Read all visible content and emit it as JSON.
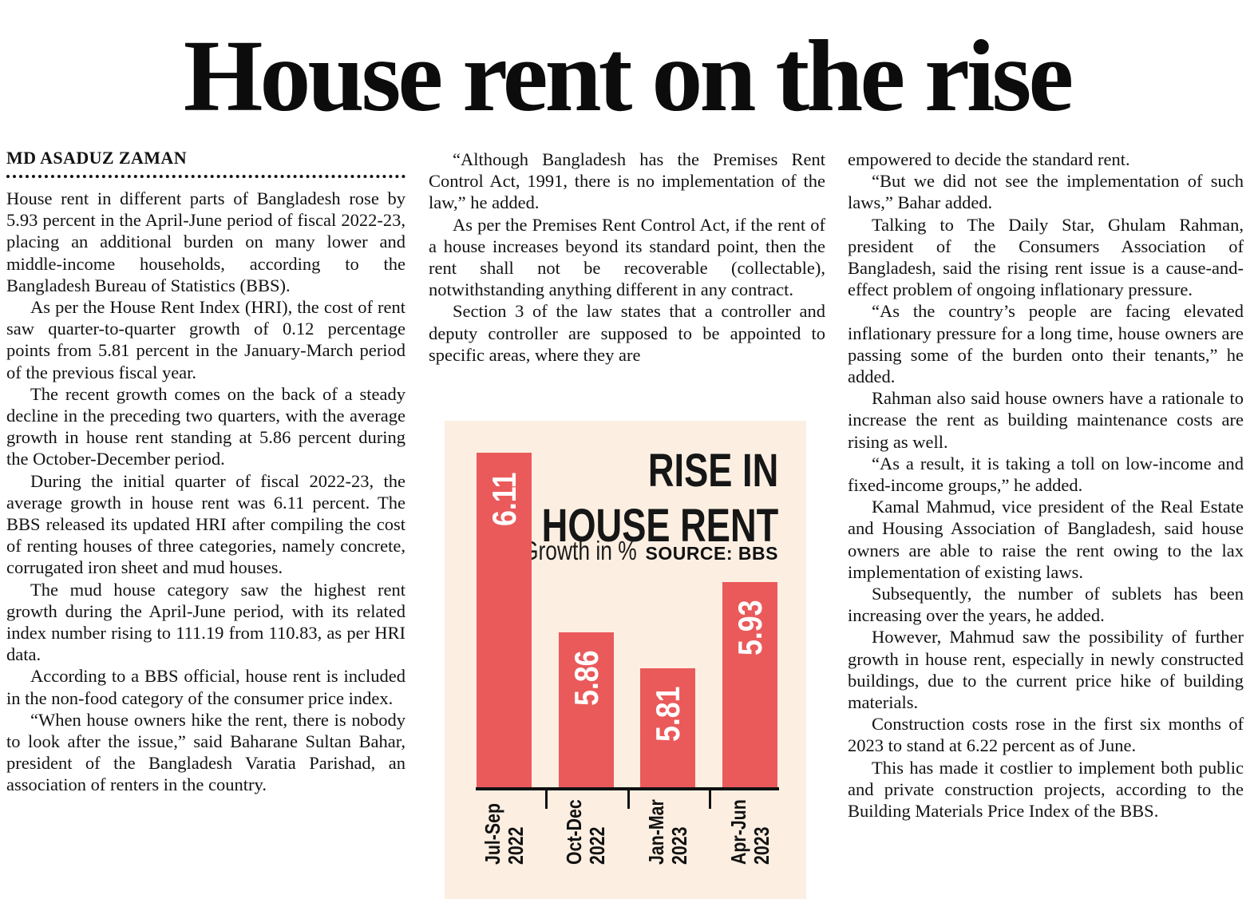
{
  "headline": "House rent on the rise",
  "byline": "MD ASADUZ ZAMAN",
  "columns": {
    "col1": {
      "paragraphs": [
        {
          "indent": false,
          "text": "House rent in different parts of Bangladesh rose by 5.93 percent in the April-June period of fiscal 2022-23, placing an additional burden on many lower and middle-income households, according to the Bangladesh Bureau of Statistics (BBS)."
        },
        {
          "indent": true,
          "text": "As per the House Rent Index (HRI), the cost of rent saw quarter-to-quarter growth of 0.12 percentage points from 5.81 percent in the January-March period of the previous fiscal year."
        },
        {
          "indent": true,
          "text": "The recent growth comes on the back of a steady decline in the preceding two quarters, with the average growth in house rent standing at 5.86 percent during the October-December period."
        },
        {
          "indent": true,
          "text": "During the initial quarter of fiscal 2022-23, the average growth in house rent was 6.11 percent. The BBS released its updated HRI after compiling the cost of renting houses of three categories, namely concrete, corrugated iron sheet and mud houses."
        },
        {
          "indent": true,
          "text": "The mud house category saw the highest rent growth during the April-June period, with its related index number rising to 111.19 from 110.83, as per HRI data."
        },
        {
          "indent": true,
          "text": "According to a BBS official, house rent is included in the non-food category of the consumer price index."
        },
        {
          "indent": true,
          "text": "“When house owners hike the rent, there is nobody to look after the issue,” said Baharane Sultan Bahar, president of the Bangladesh Varatia Parishad, an association of renters in the country."
        }
      ]
    },
    "col2": {
      "paragraphs": [
        {
          "indent": true,
          "text": "“Although Bangladesh has the Premises Rent Control Act, 1991, there is no implementation of the law,” he added."
        },
        {
          "indent": true,
          "text": "As per the Premises Rent Control Act, if the rent of a house increases beyond its standard point, then the rent shall not be recoverable (collectable), notwithstanding anything different in any contract."
        },
        {
          "indent": true,
          "text": "Section 3 of the law states that a controller and deputy controller are supposed to be appointed to specific areas, where they are"
        }
      ]
    },
    "col3": {
      "paragraphs": [
        {
          "indent": false,
          "text": "empowered to decide the standard rent."
        },
        {
          "indent": true,
          "text": "“But we did not see the implementation of such laws,” Bahar added."
        },
        {
          "indent": true,
          "text": "Talking to The Daily Star, Ghulam Rahman, president of the Consumers Association of Bangladesh, said the rising rent issue is a cause-and-effect problem of ongoing inflationary pressure."
        },
        {
          "indent": true,
          "text": "“As the country’s people are facing elevated inflationary pressure for a long time, house owners are passing some of the burden onto their tenants,” he added."
        },
        {
          "indent": true,
          "text": "Rahman also said house owners have a rationale to increase the rent as building maintenance costs are rising as well."
        },
        {
          "indent": true,
          "text": "“As a result, it is taking a toll on low-income and fixed-income groups,” he added."
        },
        {
          "indent": true,
          "text": "Kamal Mahmud, vice president of the Real Estate and Housing Association of Bangladesh, said house owners are able to raise the rent owing to the lax implementation of existing laws."
        },
        {
          "indent": true,
          "text": "Subsequently, the number of sublets has been increasing over the years, he added."
        },
        {
          "indent": true,
          "text": "However, Mahmud saw the possibility of further growth in house rent, especially in newly constructed buildings, due to the current price hike of building materials."
        },
        {
          "indent": true,
          "text": "Construction costs rose in the first six months of 2023 to stand at 6.22 percent as of June."
        },
        {
          "indent": true,
          "text": "This has made it costlier to implement both public and private construction projects, according to the Building Materials Price Index of the BBS."
        }
      ]
    }
  },
  "chart_data": {
    "type": "bar",
    "title_lines": [
      "RISE IN",
      "HOUSE RENT"
    ],
    "subtitle": "Growth in %",
    "source": "SOURCE: BBS",
    "categories": [
      [
        "Jul-Sep",
        "2022"
      ],
      [
        "Oct-Dec",
        "2022"
      ],
      [
        "Jan-Mar",
        "2023"
      ],
      [
        "Apr-Jun",
        "2023"
      ]
    ],
    "values": [
      6.11,
      5.86,
      5.81,
      5.93
    ],
    "value_labels": [
      "6.11",
      "5.86",
      "5.81",
      "5.93"
    ],
    "unit": "%",
    "bar_color": "#ea5a5b",
    "background_color": "#fcefe2",
    "axis_color": "#111111",
    "value_label_color": "#ffffff",
    "ylim": [
      5.645,
      6.11
    ],
    "grid": false,
    "legend_position": "none"
  }
}
